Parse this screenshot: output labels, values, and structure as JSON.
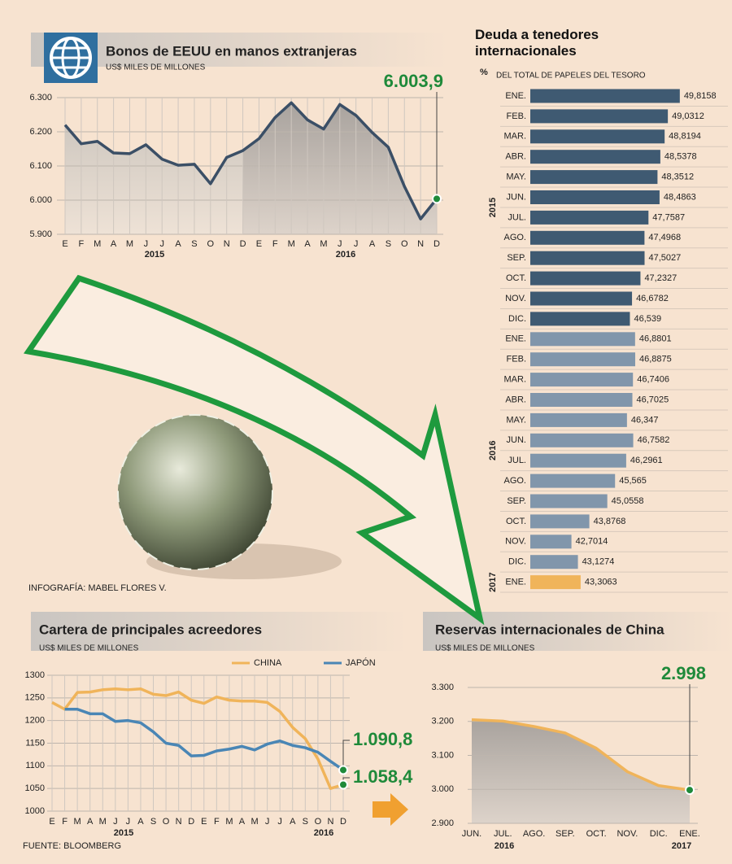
{
  "chart_data": [
    {
      "type": "line",
      "title": "Bonos de EEUU en manos extranjeras",
      "subtitle": "US$ MILES DE MILLONES",
      "categories": [
        "E",
        "F",
        "M",
        "A",
        "M",
        "J",
        "J",
        "A",
        "S",
        "O",
        "N",
        "D",
        "E",
        "F",
        "M",
        "A",
        "M",
        "J",
        "J",
        "A",
        "S",
        "O",
        "N",
        "D"
      ],
      "x_groups": [
        "2015",
        "2016"
      ],
      "series": [
        {
          "name": null,
          "color": "#3b4f66",
          "values": [
            6220,
            6165,
            6172,
            6138,
            6136,
            6162,
            6120,
            6102,
            6105,
            6048,
            6125,
            6145,
            6180,
            6242,
            6285,
            6235,
            6208,
            6280,
            6248,
            6198,
            6155,
            6040,
            5945,
            6003.9
          ],
          "value_labels": [
            null,
            null,
            null,
            null,
            null,
            null,
            null,
            null,
            null,
            null,
            null,
            null,
            null,
            null,
            null,
            null,
            null,
            null,
            null,
            null,
            null,
            null,
            null,
            "6.003,9"
          ]
        }
      ],
      "ylim": [
        5900,
        6300
      ],
      "yticks": [
        {
          "value": 5900,
          "label": "5.900"
        },
        {
          "value": 6000,
          "label": "6.000"
        },
        {
          "value": 6100,
          "label": "6.100"
        },
        {
          "value": 6200,
          "label": "6.200"
        },
        {
          "value": 6300,
          "label": "6.300"
        }
      ],
      "grid": true
    },
    {
      "type": "bar",
      "orientation": "horizontal",
      "title": "Deuda a tenedores internacionales",
      "unit": "%",
      "subtitle": "DEL TOTAL DE PAPELES DEL TESORO",
      "xlim": [
        40,
        51
      ],
      "series": [
        {
          "name": "2015",
          "color": "#3f5a72",
          "categories": [
            "ENE.",
            "FEB.",
            "MAR.",
            "ABR.",
            "MAY.",
            "JUN.",
            "JUL.",
            "AGO.",
            "SEP.",
            "OCT.",
            "NOV.",
            "DIC."
          ],
          "values": [
            49.8158,
            49.0312,
            48.8194,
            48.5378,
            48.3512,
            48.4863,
            47.7587,
            47.4968,
            47.5027,
            47.2327,
            46.6782,
            46.539
          ],
          "value_labels": [
            "49,8158",
            "49,0312",
            "48,8194",
            "48,5378",
            "48,3512",
            "48,4863",
            "47,7587",
            "47,4968",
            "47,5027",
            "47,2327",
            "46,6782",
            "46,539"
          ]
        },
        {
          "name": "2016",
          "color": "#8196ab",
          "categories": [
            "ENE.",
            "FEB.",
            "MAR.",
            "ABR.",
            "MAY.",
            "JUN.",
            "JUL.",
            "AGO.",
            "SEP.",
            "OCT.",
            "NOV.",
            "DIC."
          ],
          "values": [
            46.8801,
            46.8875,
            46.7406,
            46.7025,
            46.347,
            46.7582,
            46.2961,
            45.565,
            45.0558,
            43.8768,
            42.7014,
            43.1274
          ],
          "value_labels": [
            "46,8801",
            "46,8875",
            "46,7406",
            "46,7025",
            "46,347",
            "46,7582",
            "46,2961",
            "45,565",
            "45,0558",
            "43,8768",
            "42,7014",
            "43,1274"
          ]
        },
        {
          "name": "2017",
          "color": "#f0b45a",
          "categories": [
            "ENE."
          ],
          "values": [
            43.3063
          ],
          "value_labels": [
            "43,3063"
          ]
        }
      ]
    },
    {
      "type": "line",
      "title": "Cartera de principales acreedores",
      "subtitle": "US$ MILES DE MILLONES",
      "categories": [
        "E",
        "F",
        "M",
        "A",
        "M",
        "J",
        "J",
        "A",
        "S",
        "O",
        "N",
        "D",
        "E",
        "F",
        "M",
        "A",
        "M",
        "J",
        "J",
        "A",
        "S",
        "O",
        "N",
        "D"
      ],
      "x_groups": [
        "2015",
        "2016"
      ],
      "series": [
        {
          "name": "CHINA",
          "color": "#f0b45a",
          "values": [
            1240,
            1225,
            1262,
            1263,
            1268,
            1270,
            1268,
            1270,
            1258,
            1255,
            1263,
            1245,
            1238,
            1252,
            1245,
            1243,
            1243,
            1240,
            1220,
            1185,
            1160,
            1115,
            1050,
            1058.4
          ],
          "value_labels": [
            null,
            null,
            null,
            null,
            null,
            null,
            null,
            null,
            null,
            null,
            null,
            null,
            null,
            null,
            null,
            null,
            null,
            null,
            null,
            null,
            null,
            null,
            null,
            "1.058,4"
          ]
        },
        {
          "name": "JAPÓN",
          "color": "#4a86b5",
          "values": [
            null,
            1225,
            1225,
            1215,
            1215,
            1198,
            1200,
            1195,
            1175,
            1150,
            1145,
            1122,
            1123,
            1133,
            1137,
            1143,
            1135,
            1148,
            1155,
            1145,
            1140,
            1130,
            1110,
            1090.8
          ],
          "value_labels": [
            null,
            null,
            null,
            null,
            null,
            null,
            null,
            null,
            null,
            null,
            null,
            null,
            null,
            null,
            null,
            null,
            null,
            null,
            null,
            null,
            null,
            null,
            null,
            "1.090,8"
          ]
        }
      ],
      "ylim": [
        1000,
        1300
      ],
      "yticks": [
        1000,
        1050,
        1100,
        1150,
        1200,
        1250,
        1300
      ],
      "grid": true,
      "legend": "top"
    },
    {
      "type": "line",
      "title": "Reservas internacionales de China",
      "subtitle": "US$ MILES DE MILLONES",
      "categories": [
        "JUN.",
        "JUL.",
        "AGO.",
        "SEP.",
        "OCT.",
        "NOV.",
        "DIC.",
        "ENE."
      ],
      "x_groups": [
        "2016",
        "2017"
      ],
      "series": [
        {
          "name": null,
          "color": "#f0b45a",
          "values": [
            3205,
            3201,
            3185,
            3166,
            3121,
            3052,
            3011,
            2998
          ],
          "value_labels": [
            null,
            null,
            null,
            null,
            null,
            null,
            null,
            "2.998"
          ]
        }
      ],
      "ylim": [
        2900,
        3300
      ],
      "yticks": [
        {
          "value": 2900,
          "label": "2.900"
        },
        {
          "value": 3000,
          "label": "3.000"
        },
        {
          "value": 3100,
          "label": "3.100"
        },
        {
          "value": 3200,
          "label": "3.200"
        },
        {
          "value": 3300,
          "label": "3.300"
        }
      ],
      "grid": true
    }
  ],
  "credits": {
    "graphics": "INFOGRAFÍA: MABEL FLORES V.",
    "source": "FUENTE: BLOOMBERG"
  }
}
